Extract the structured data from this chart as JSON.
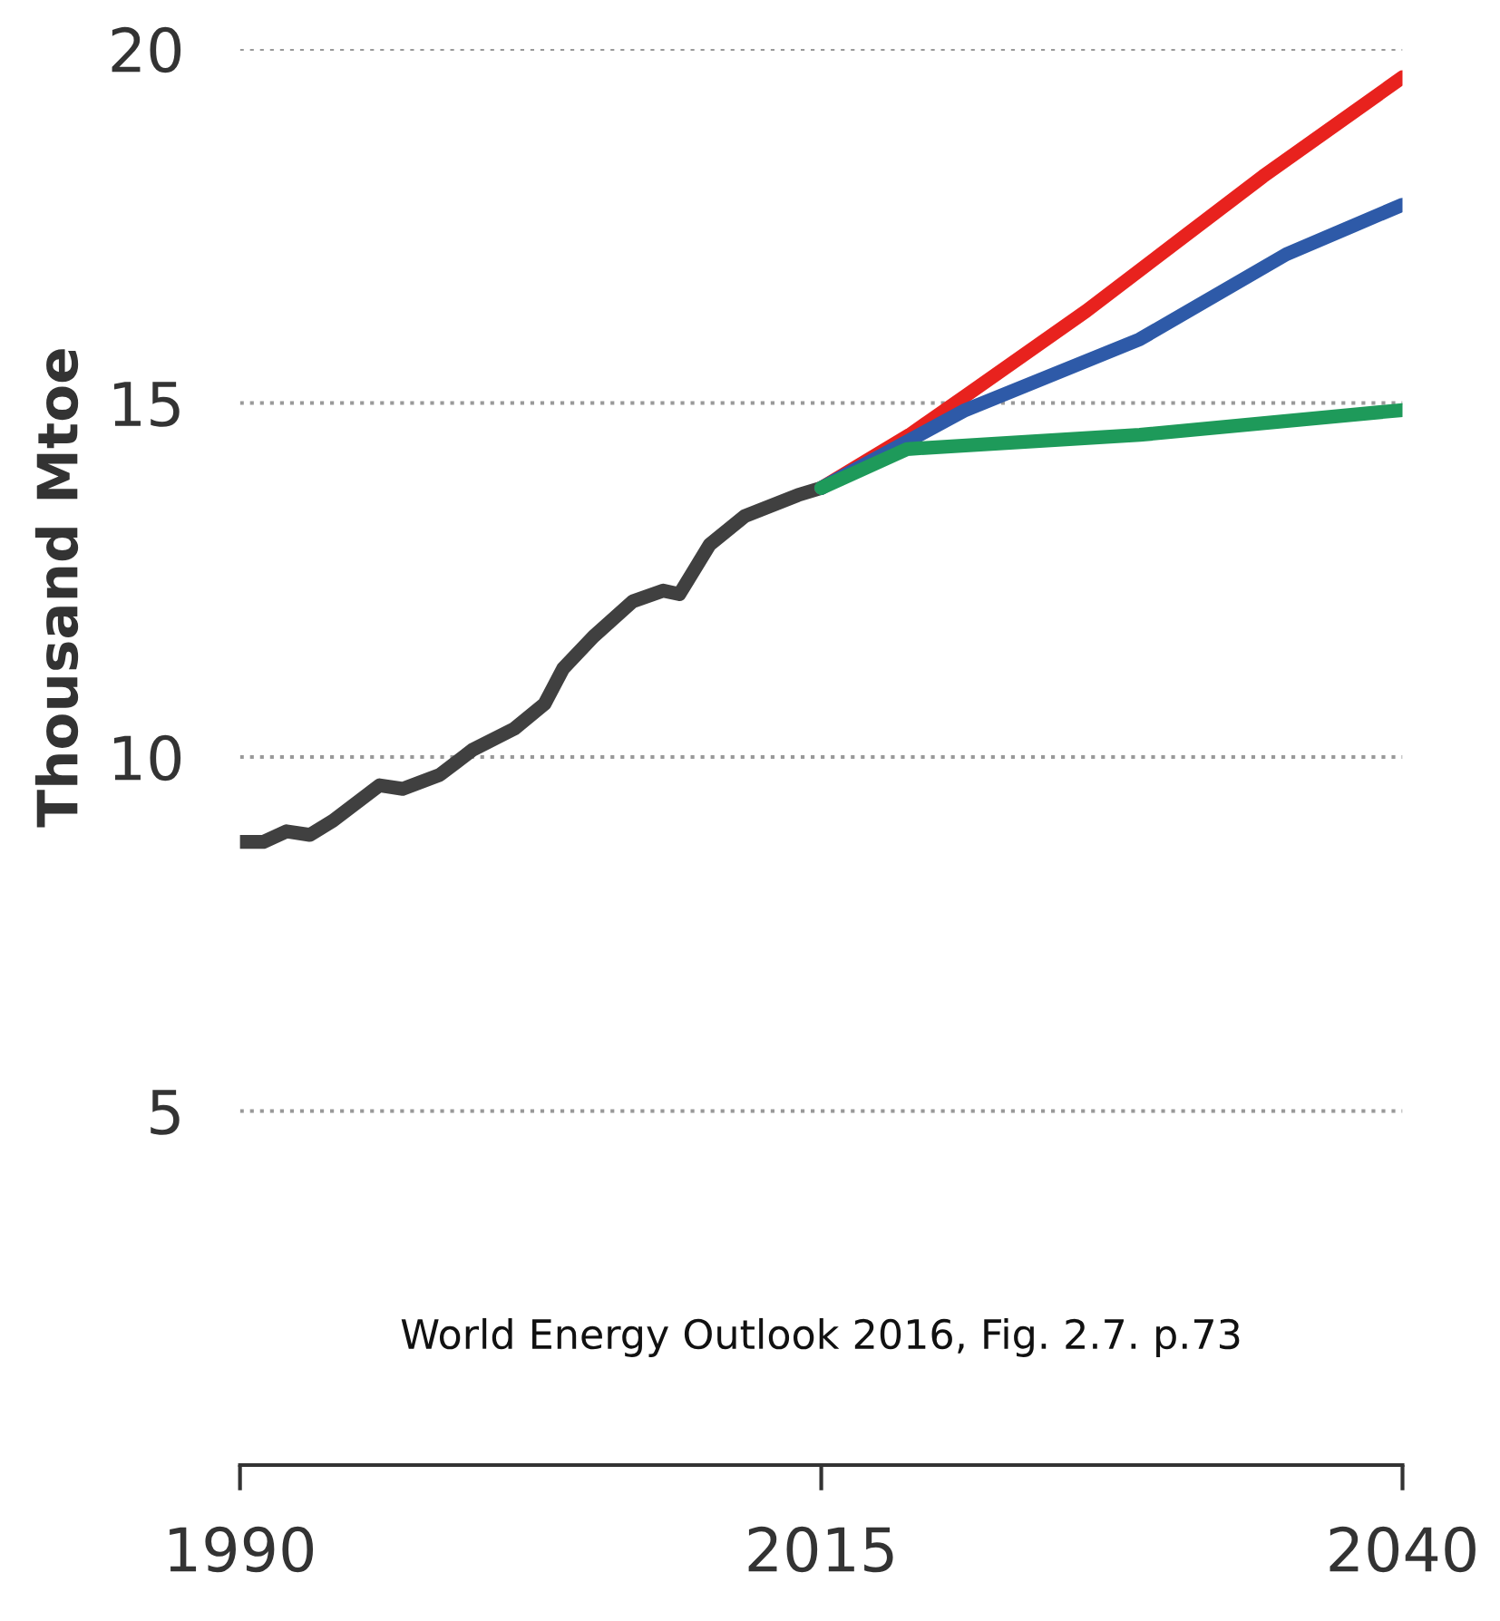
{
  "chart_data": {
    "type": "line",
    "ylabel": "Thousand Mtoe",
    "xlim": [
      1990,
      2040
    ],
    "xticks": [
      1990,
      2015,
      2040
    ],
    "ylim": [
      0,
      20
    ],
    "yticks": [
      5,
      10,
      15,
      20
    ],
    "grid": "y",
    "series": [
      {
        "color": "#404040",
        "x": [
          1990,
          1991,
          1992,
          1993,
          1994,
          1996,
          1997,
          1998.6,
          2000,
          2001.8,
          2003.1,
          2003.9,
          2005.2,
          2006.9,
          2008.2,
          2008.9,
          2010.2,
          2011.7,
          2014,
          2015
        ],
        "values": [
          8.8,
          8.8,
          8.95,
          8.9,
          9.1,
          9.6,
          9.55,
          9.75,
          10.1,
          10.4,
          10.75,
          11.25,
          11.7,
          12.2,
          12.35,
          12.3,
          13.0,
          13.4,
          13.7,
          13.8
        ]
      },
      {
        "color": "#e8221e",
        "x": [
          2015,
          2018.8,
          2021.2,
          2026.4,
          2034,
          2040
        ],
        "values": [
          13.8,
          14.55,
          15.1,
          16.3,
          18.2,
          19.6
        ]
      },
      {
        "color": "#2e5aa8",
        "x": [
          2015,
          2021.2,
          2028.7,
          2035,
          2040
        ],
        "values": [
          13.8,
          14.9,
          15.9,
          17.1,
          17.8
        ]
      },
      {
        "color": "#1e9a5a",
        "x": [
          2015,
          2018.7,
          2028.7,
          2040
        ],
        "values": [
          13.8,
          14.35,
          14.55,
          14.9
        ]
      }
    ],
    "annotations": [
      "World Energy Outlook 2016, Fig. 2.7. p.73"
    ]
  }
}
